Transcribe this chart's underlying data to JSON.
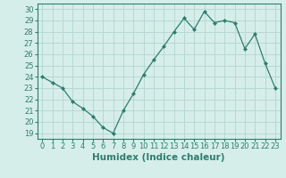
{
  "x": [
    0,
    1,
    2,
    3,
    4,
    5,
    6,
    7,
    8,
    9,
    10,
    11,
    12,
    13,
    14,
    15,
    16,
    17,
    18,
    19,
    20,
    21,
    22,
    23
  ],
  "y": [
    24.0,
    23.5,
    23.0,
    21.8,
    21.2,
    20.5,
    19.5,
    19.0,
    21.0,
    22.5,
    24.2,
    25.5,
    26.7,
    28.0,
    29.2,
    28.2,
    29.8,
    28.8,
    29.0,
    28.8,
    26.5,
    27.8,
    25.2,
    23.0
  ],
  "line_color": "#2e7d6e",
  "marker": "D",
  "marker_size": 2.0,
  "bg_color": "#d6eeea",
  "grid_color": "#b8d8d2",
  "xlabel": "Humidex (Indice chaleur)",
  "ylabel_ticks": [
    19,
    20,
    21,
    22,
    23,
    24,
    25,
    26,
    27,
    28,
    29,
    30
  ],
  "xlim": [
    -0.5,
    23.5
  ],
  "ylim": [
    18.5,
    30.5
  ],
  "xticks": [
    0,
    1,
    2,
    3,
    4,
    5,
    6,
    7,
    8,
    9,
    10,
    11,
    12,
    13,
    14,
    15,
    16,
    17,
    18,
    19,
    20,
    21,
    22,
    23
  ],
  "tick_fontsize": 6.0,
  "xlabel_fontsize": 7.5,
  "xlabel_fontweight": "bold"
}
